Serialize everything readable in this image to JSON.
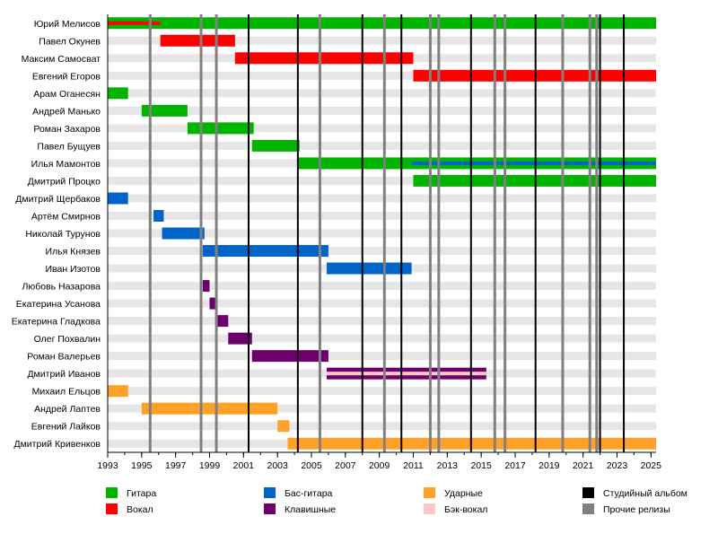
{
  "chart_data": {
    "type": "bar",
    "subtype": "timeline-gantt",
    "xlim": [
      1993,
      2025.3
    ],
    "x_ticks": [
      "1993",
      "1995",
      "1997",
      "1999",
      "2001",
      "2003",
      "2005",
      "2007",
      "2009",
      "2011",
      "2013",
      "2015",
      "2017",
      "2019",
      "2021",
      "2023",
      "2025"
    ],
    "colors": {
      "guitar": "#00b400",
      "vocal": "#ff0000",
      "bass": "#0064c8",
      "keys": "#6e006e",
      "drums": "#ffa028",
      "backing": "#ffc8c8",
      "album": "#000000",
      "other": "#808080",
      "stripe": "#e6e6e6"
    },
    "legend": {
      "placement": "bottom",
      "items": [
        {
          "key": "guitar",
          "label": "Гитара"
        },
        {
          "key": "vocal",
          "label": "Вокал"
        },
        {
          "key": "bass",
          "label": "Бас-гитара"
        },
        {
          "key": "keys",
          "label": "Клавишные"
        },
        {
          "key": "drums",
          "label": "Ударные"
        },
        {
          "key": "backing",
          "label": "Бэк-вокал"
        },
        {
          "key": "album",
          "label": "Студийный альбом"
        },
        {
          "key": "other",
          "label": "Прочие релизы"
        }
      ]
    },
    "members": [
      {
        "name": "Юрий Мелисов",
        "bars": [
          {
            "role": "guitar",
            "start": 1993,
            "end": 2025.3
          },
          {
            "role": "vocal",
            "start": 1993,
            "end": 1996.1,
            "thin": true
          }
        ]
      },
      {
        "name": "Павел Окунев",
        "bars": [
          {
            "role": "vocal",
            "start": 1996.1,
            "end": 2000.5
          }
        ]
      },
      {
        "name": "Максим Самосват",
        "bars": [
          {
            "role": "vocal",
            "start": 2000.5,
            "end": 2011.0
          }
        ]
      },
      {
        "name": "Евгений Егоров",
        "bars": [
          {
            "role": "vocal",
            "start": 2011.0,
            "end": 2025.3
          }
        ]
      },
      {
        "name": "Арам Оганесян",
        "bars": [
          {
            "role": "guitar",
            "start": 1993,
            "end": 1994.2
          }
        ]
      },
      {
        "name": "Андрей Манько",
        "bars": [
          {
            "role": "guitar",
            "start": 1995.0,
            "end": 1997.7
          }
        ]
      },
      {
        "name": "Роман Захаров",
        "bars": [
          {
            "role": "guitar",
            "start": 1997.7,
            "end": 2001.6
          }
        ]
      },
      {
        "name": "Павел Бущуев",
        "bars": [
          {
            "role": "guitar",
            "start": 2001.5,
            "end": 2004.3
          }
        ]
      },
      {
        "name": "Илья Мамонтов",
        "bars": [
          {
            "role": "guitar",
            "start": 2004.2,
            "end": 2025.3
          },
          {
            "role": "bass",
            "start": 2010.9,
            "end": 2025.3,
            "thin": true
          }
        ]
      },
      {
        "name": "Дмитрий Процко",
        "bars": [
          {
            "role": "guitar",
            "start": 2011.0,
            "end": 2025.3
          }
        ]
      },
      {
        "name": "Дмитрий Щербаков",
        "bars": [
          {
            "role": "bass",
            "start": 1993,
            "end": 1994.2
          }
        ]
      },
      {
        "name": "Артём Смирнов",
        "bars": [
          {
            "role": "bass",
            "start": 1995.7,
            "end": 1996.3
          }
        ]
      },
      {
        "name": "Николай Турунов",
        "bars": [
          {
            "role": "bass",
            "start": 1996.2,
            "end": 1998.7
          }
        ]
      },
      {
        "name": "Илья Князев",
        "bars": [
          {
            "role": "bass",
            "start": 1998.6,
            "end": 2006.0
          }
        ]
      },
      {
        "name": "Иван Изотов",
        "bars": [
          {
            "role": "bass",
            "start": 2005.9,
            "end": 2010.9
          }
        ]
      },
      {
        "name": "Любовь Назарова",
        "bars": [
          {
            "role": "keys",
            "start": 1998.6,
            "end": 1999.0
          }
        ]
      },
      {
        "name": "Екатерина Усанова",
        "bars": [
          {
            "role": "keys",
            "start": 1999.0,
            "end": 1999.4
          }
        ]
      },
      {
        "name": "Екатерина Гладкова",
        "bars": [
          {
            "role": "keys",
            "start": 1999.4,
            "end": 2000.1
          }
        ]
      },
      {
        "name": "Олег Похвалин",
        "bars": [
          {
            "role": "keys",
            "start": 2000.1,
            "end": 2001.5
          }
        ]
      },
      {
        "name": "Роман Валерьев",
        "bars": [
          {
            "role": "keys",
            "start": 2001.5,
            "end": 2006.0
          }
        ]
      },
      {
        "name": "Дмитрий Иванов",
        "bars": [
          {
            "role": "keys",
            "start": 2005.9,
            "end": 2015.3
          },
          {
            "role": "backing",
            "start": 2005.9,
            "end": 2015.3,
            "thin": true
          }
        ]
      },
      {
        "name": "Михаил Ельцов",
        "bars": [
          {
            "role": "drums",
            "start": 1993,
            "end": 1994.2
          }
        ]
      },
      {
        "name": "Андрей Лаптев",
        "bars": [
          {
            "role": "drums",
            "start": 1995.0,
            "end": 2003.0
          }
        ]
      },
      {
        "name": "Евгений Лайков",
        "bars": [
          {
            "role": "drums",
            "start": 2003.0,
            "end": 2003.7
          }
        ]
      },
      {
        "name": "Дмитрий Кривенков",
        "bars": [
          {
            "role": "drums",
            "start": 2003.6,
            "end": 2025.3
          }
        ]
      }
    ],
    "studio_albums": [
      2001.3,
      2004.2,
      2008.0,
      2010.3,
      2014.4,
      2018.2,
      2022.0,
      2023.4
    ],
    "other_releases": [
      1995.5,
      1998.5,
      1999.4,
      2005.5,
      2009.3,
      2012.0,
      2012.5,
      2015.8,
      2016.4,
      2019.8,
      2021.4,
      2021.8
    ]
  }
}
